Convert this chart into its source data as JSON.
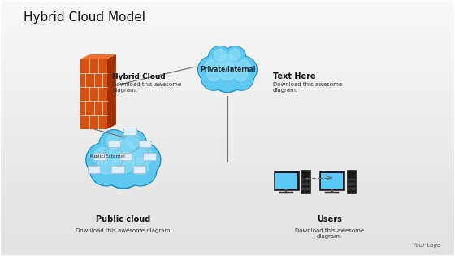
{
  "title": "Hybrid Cloud Model",
  "title_fontsize": 11,
  "background_color": "#f0f0f0",
  "labels": {
    "hybrid_cloud": "Hybrid Cloud",
    "hybrid_cloud_sub": "Download this awesome\ndiagram.",
    "private_internal": "Private/Internal",
    "text_here": "Text Here",
    "text_here_sub": "Download this awesome\ndiagram.",
    "public_cloud": "Public cloud",
    "public_cloud_sub": "Download this awesome diagram.",
    "public_external": "Public/External",
    "users": "Users",
    "users_sub": "Download this awesome\ndiagram.",
    "your_logo": "Your Logo"
  },
  "colors": {
    "cloud_blue_main": "#60c8f0",
    "cloud_blue_mid": "#40b0e0",
    "cloud_blue_light": "#90dff8",
    "cloud_blue_dark": "#1890c0",
    "cloud_rim": "#2090c8",
    "firewall_front": "#d85010",
    "firewall_top": "#f07030",
    "firewall_right": "#a03000",
    "firewall_brick": "#ffffff",
    "node_fill": "#e0ecf8",
    "node_edge": "#8899bb",
    "line_color": "#888888",
    "text_dark": "#1a1a1a",
    "text_gray": "#333333",
    "monitor_body": "#1a1a1a",
    "monitor_screen": "#60c8f0",
    "monitor_stand": "#555555"
  }
}
